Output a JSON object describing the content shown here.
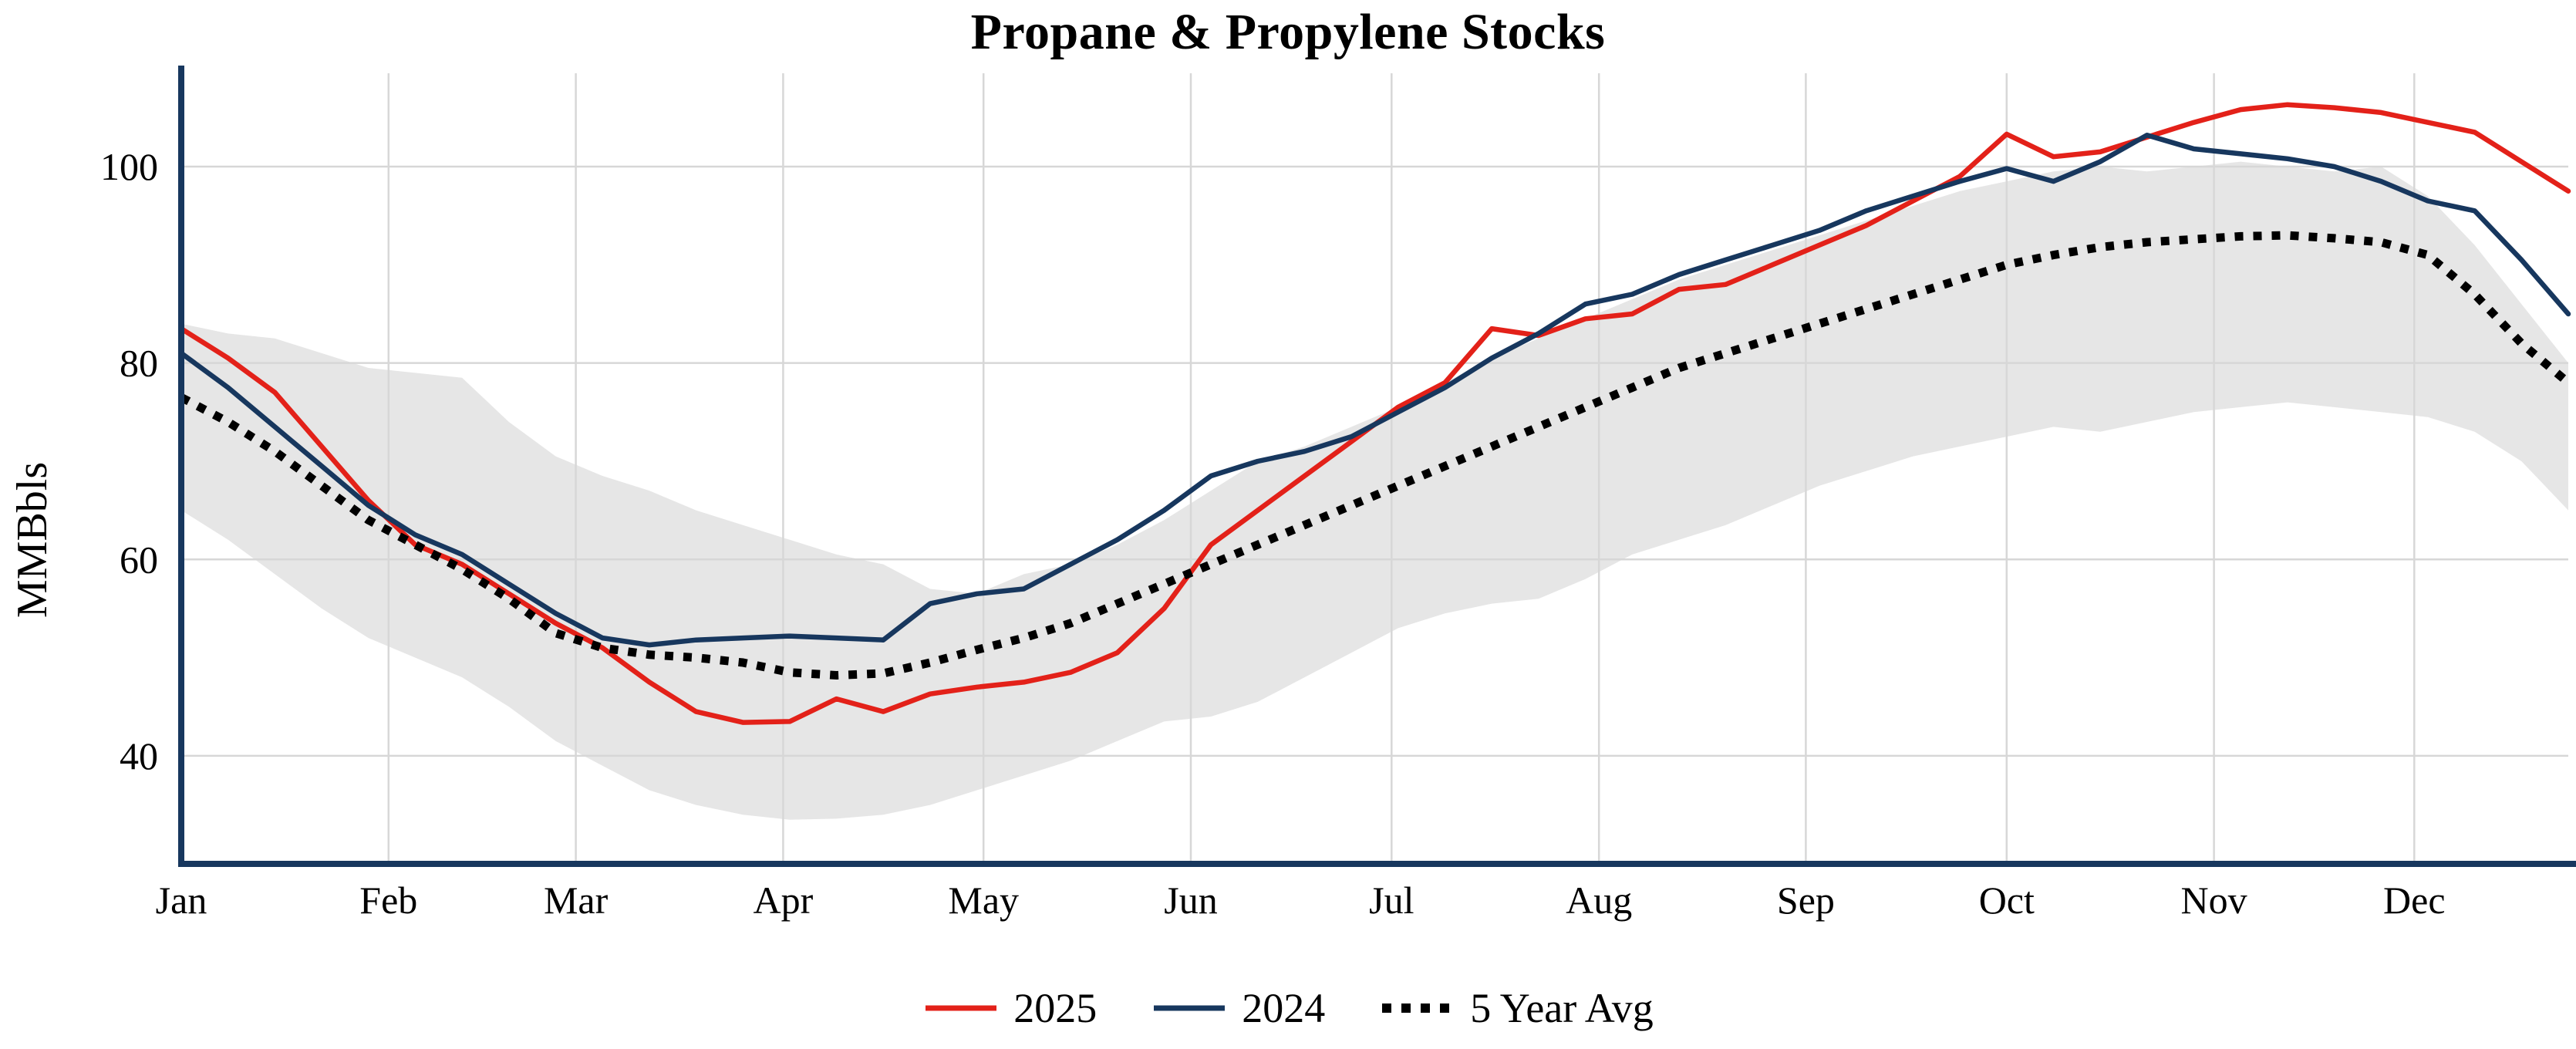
{
  "title": "Propane & Propylene Stocks",
  "y_axis_label": "MMBbls",
  "legend": [
    {
      "label": "2025",
      "color": "#e32119",
      "style": "solid"
    },
    {
      "label": "2024",
      "color": "#17375e",
      "style": "solid"
    },
    {
      "label": "5 Year Avg",
      "color": "#000000",
      "style": "dotted"
    }
  ],
  "chart_data": {
    "type": "line",
    "title": "Propane & Propylene Stocks",
    "ylabel": "MMBbls",
    "xlabel": "",
    "x_unit": "week-of-year (52 weekly points)",
    "grid": true,
    "legend_position": "bottom",
    "axis_color": "#17375e",
    "grid_color": "#d7d7d7",
    "ylim": [
      29,
      109.5
    ],
    "yticks": [
      40,
      60,
      80,
      100
    ],
    "months": [
      "Jan",
      "Feb",
      "Mar",
      "Apr",
      "May",
      "Jun",
      "Jul",
      "Aug",
      "Sep",
      "Oct",
      "Nov",
      "Dec"
    ],
    "month_week_positions": [
      0,
      4.43,
      8.43,
      12.86,
      17.14,
      21.57,
      25.86,
      30.29,
      34.71,
      39.0,
      43.43,
      47.71
    ],
    "series": [
      {
        "name": "2025",
        "color": "#e32119",
        "dash": "solid",
        "values": [
          83.5,
          80.5,
          77,
          71.5,
          66,
          61.5,
          59.5,
          56.5,
          53.5,
          51,
          47.5,
          44.5,
          43.4,
          43.5,
          45.8,
          44.5,
          46.3,
          47,
          47.5,
          48.5,
          50.5,
          55,
          61.5,
          65,
          68.5,
          72,
          75.5,
          78,
          83.5,
          82.8,
          84.5,
          85,
          87.5,
          88,
          90,
          92,
          94,
          96.5,
          99,
          103.3,
          101,
          101.5,
          103,
          104.5,
          105.8,
          106.3,
          106,
          105.5,
          104.5,
          103.5,
          100.5,
          97.5
        ]
      },
      {
        "name": "2024",
        "color": "#17375e",
        "dash": "solid",
        "values": [
          81,
          77.5,
          73.5,
          69.5,
          65.5,
          62.5,
          60.5,
          57.5,
          54.5,
          52,
          51.3,
          51.8,
          52,
          52.2,
          52,
          51.8,
          55.5,
          56.5,
          57,
          59.5,
          62,
          65,
          68.5,
          70,
          71,
          72.5,
          75,
          77.5,
          80.5,
          83,
          86,
          87,
          89,
          90.5,
          92,
          93.5,
          95.5,
          97,
          98.5,
          99.8,
          98.5,
          100.5,
          103.2,
          101.8,
          101.3,
          100.8,
          100,
          98.5,
          96.5,
          95.5,
          90.5,
          85
        ]
      },
      {
        "name": "5 Year Avg",
        "color": "#000000",
        "dash": "dotted",
        "values": [
          76.5,
          74,
          71,
          67.5,
          64,
          61.5,
          59,
          56,
          52.5,
          51,
          50.3,
          50,
          49.5,
          48.5,
          48.2,
          48.4,
          49.5,
          50.8,
          52,
          53.5,
          55.5,
          57.5,
          59.5,
          61.5,
          63.5,
          65.5,
          67.5,
          69.5,
          71.5,
          73.5,
          75.5,
          77.5,
          79.5,
          81,
          82.5,
          84,
          85.5,
          87,
          88.5,
          90,
          91,
          91.8,
          92.3,
          92.6,
          92.9,
          93,
          92.7,
          92.3,
          91,
          87,
          82,
          78
        ]
      }
    ],
    "band": {
      "name": "5 Year Range",
      "color": "#e6e6e6",
      "upper": [
        84,
        83,
        82.5,
        81,
        79.5,
        79,
        78.5,
        74,
        70.5,
        68.5,
        67,
        65,
        63.5,
        62,
        60.5,
        59.5,
        57,
        56.5,
        58.5,
        59.5,
        61.5,
        64,
        67,
        70,
        71.5,
        73.5,
        75.5,
        78,
        80.5,
        82.5,
        84.5,
        86.5,
        88.5,
        90,
        91.5,
        93,
        94.5,
        96,
        97.5,
        98.5,
        99.5,
        100,
        99.5,
        100,
        100.5,
        100,
        99.5,
        100,
        97,
        92,
        86,
        80
      ],
      "lower": [
        65,
        62,
        58.5,
        55,
        52,
        50,
        48,
        45,
        41.5,
        39,
        36.5,
        35,
        34,
        33.5,
        33.6,
        34,
        35,
        36.5,
        38,
        39.5,
        41.5,
        43.5,
        44,
        45.5,
        48,
        50.5,
        53,
        54.5,
        55.5,
        56,
        58,
        60.5,
        62,
        63.5,
        65.5,
        67.5,
        69,
        70.5,
        71.5,
        72.5,
        73.5,
        73,
        74,
        75,
        75.5,
        76,
        75.5,
        75,
        74.5,
        73,
        70,
        65
      ]
    }
  }
}
